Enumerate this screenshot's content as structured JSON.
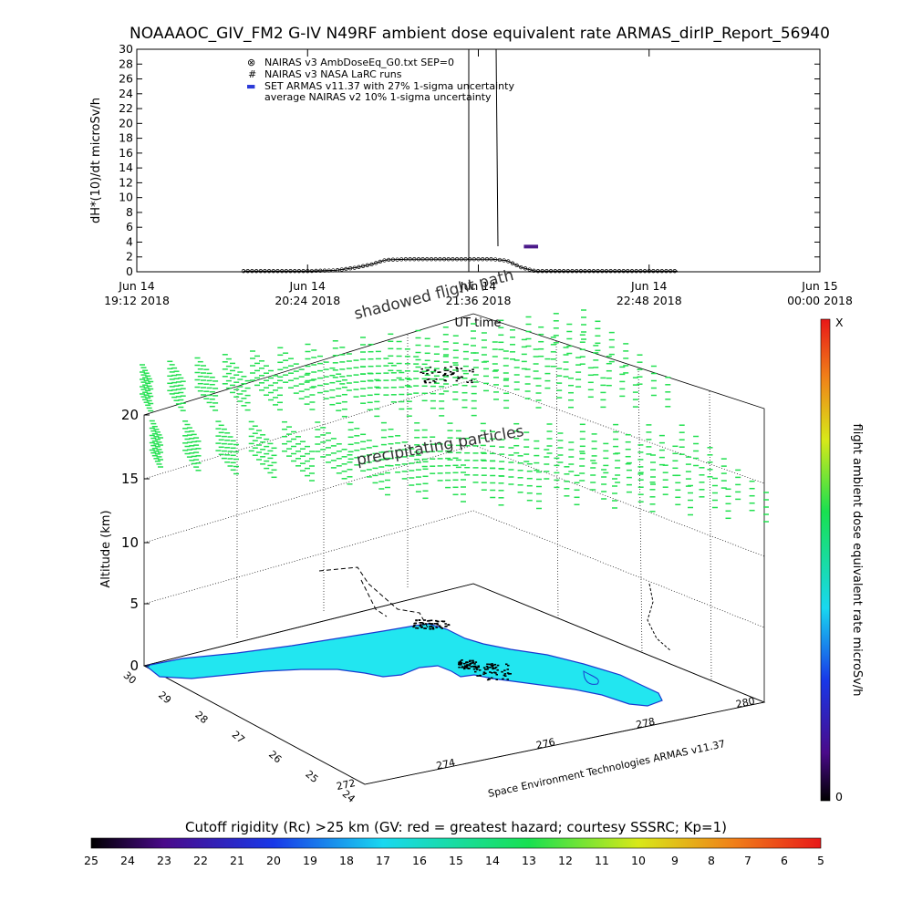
{
  "title": "NOAAAOC_GIV_FM2 G-IV   N49RF  ambient dose equivalent rate ARMAS_dirIP_Report_56940",
  "colors": {
    "trace": "#000000",
    "set_armas": "#4b1a8a",
    "map_fill": "#22e6f0",
    "map_edge": "#1a3ad0",
    "particles": "#22e050"
  },
  "chart_data": [
    {
      "type": "line",
      "ylabel": "dH*(10)/dt microSv/h",
      "xlabel": "UT time",
      "ylim": [
        0,
        30
      ],
      "yticks": [
        "0",
        "2",
        "4",
        "6",
        "8",
        "10",
        "12",
        "14",
        "16",
        "18",
        "20",
        "22",
        "24",
        "26",
        "28",
        "30"
      ],
      "xticks": [
        {
          "day": "Jun 14",
          "time": "19:12 2018"
        },
        {
          "day": "Jun 14",
          "time": "20:24 2018"
        },
        {
          "day": "Jun 14",
          "time": "21:36 2018"
        },
        {
          "day": "Jun 14",
          "time": "22:48 2018"
        },
        {
          "day": "Jun 15",
          "time": "00:00 2018"
        }
      ],
      "xlim_hours": [
        19.2,
        24.0
      ],
      "legend": [
        {
          "symbol": "⊗",
          "label": "NAIRAS v3 AmbDoseEq_G0.txt SEP=0"
        },
        {
          "symbol": "#",
          "label": "NAIRAS v3 NASA LaRC runs"
        },
        {
          "symbol": "▬",
          "label": "SET ARMAS v11.37 with 27% 1-sigma uncertainty"
        },
        {
          "symbol": "",
          "label": "average NAIRAS v2 10% 1-sigma uncertainty"
        }
      ],
      "series": [
        {
          "name": "NAIRAS v3 AmbDoseEq_G0.txt SEP=0",
          "x": [
            19.95,
            20.4,
            20.6,
            20.75,
            20.85,
            20.95,
            21.1,
            21.3,
            21.5,
            21.7,
            21.8,
            21.9,
            22.0,
            22.4,
            22.8,
            23.0
          ],
          "y": [
            0.1,
            0.1,
            0.2,
            0.6,
            1.0,
            1.6,
            1.7,
            1.7,
            1.7,
            1.7,
            1.5,
            0.6,
            0.1,
            0.1,
            0.1,
            0.1
          ]
        },
        {
          "name": "SET ARMAS v11.37 with 27% 1-sigma uncertainty",
          "x": [
            21.92,
            22.02
          ],
          "y": [
            3.4,
            3.4
          ]
        }
      ]
    },
    {
      "type": "scatter",
      "ylabel": "Altitude (km)",
      "zticks": [
        "0",
        "5",
        "10",
        "15",
        "20"
      ],
      "lat_ticks": [
        "30",
        "29",
        "28",
        "27",
        "26",
        "25",
        "24"
      ],
      "lon_ticks": [
        "272",
        "274",
        "276",
        "278",
        "280"
      ],
      "annotations": [
        "shadowed flight path",
        "precipitating particles",
        "Space Environment Technologies ARMAS v11.37"
      ]
    }
  ],
  "colorbar_right": {
    "label": "flight ambient dose equivalent rate microSv/h",
    "top": "X",
    "bottom": "0"
  },
  "colorbar_bottom": {
    "label": "Cutoff rigidity (Rc) >25 km (GV: red = greatest hazard; courtesy SSSRC; Kp=1)",
    "ticks": [
      "25",
      "24",
      "23",
      "22",
      "21",
      "20",
      "19",
      "18",
      "17",
      "16",
      "15",
      "14",
      "13",
      "12",
      "11",
      "10",
      "9",
      "8",
      "7",
      "6",
      "5"
    ]
  }
}
